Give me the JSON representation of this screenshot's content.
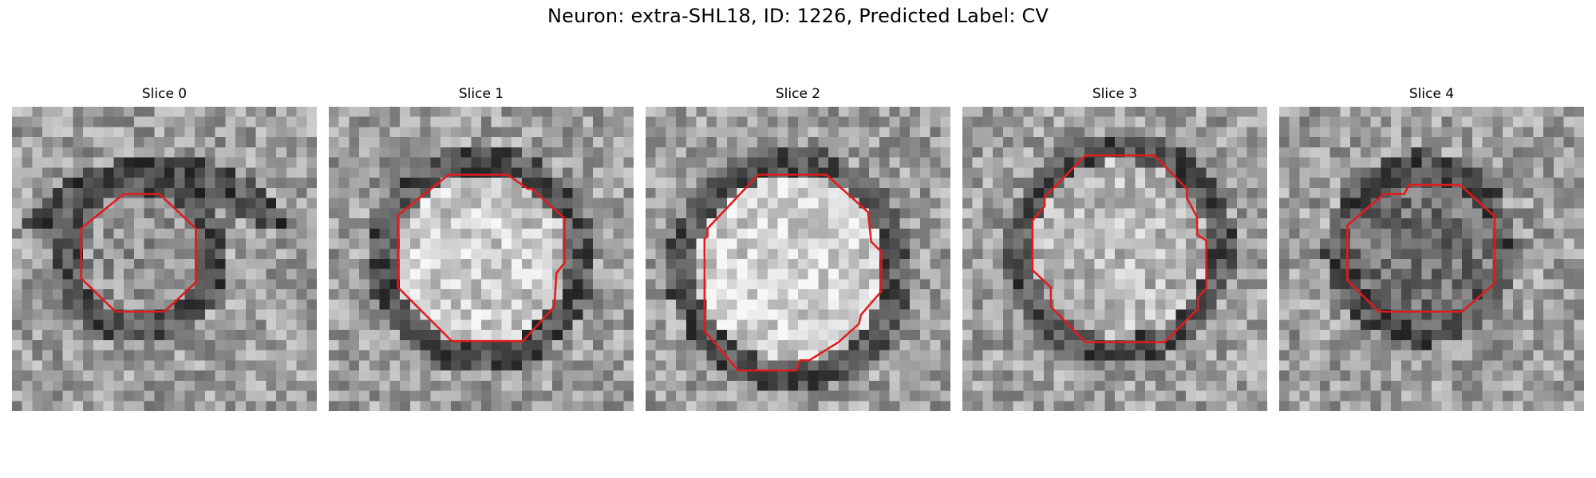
{
  "figure": {
    "title": "Neuron: extra-SHL18, ID: 1226, Predicted Label: CV",
    "outline_color": "#e31a1c",
    "panels": [
      {
        "label": "Slice 0"
      },
      {
        "label": "Slice 1"
      },
      {
        "label": "Slice 2"
      },
      {
        "label": "Slice 3"
      },
      {
        "label": "Slice 4"
      }
    ]
  }
}
